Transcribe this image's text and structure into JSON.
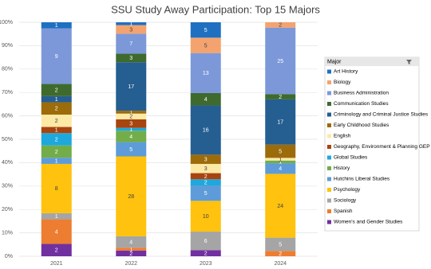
{
  "chart_data": {
    "type": "stacked_percent_bar",
    "title": "SSU Study Away Participation: Top 15 Majors",
    "categories": [
      "2021",
      "2022",
      "2023",
      "2024"
    ],
    "legend_title": "Major",
    "legend": "right",
    "ylim": [
      0,
      100
    ],
    "yticks": [
      {
        "value": 0,
        "label": "0%"
      },
      {
        "value": 10,
        "label": "10%"
      },
      {
        "value": 20,
        "label": "20%"
      },
      {
        "value": 30,
        "label": "30%"
      },
      {
        "value": 40,
        "label": "40%"
      },
      {
        "value": 50,
        "label": "50%"
      },
      {
        "value": 60,
        "label": "60%"
      },
      {
        "value": 70,
        "label": "70%"
      },
      {
        "value": 80,
        "label": "80%"
      },
      {
        "value": 90,
        "label": "90%"
      },
      {
        "value": 100,
        "label": "100%"
      }
    ],
    "series": [
      {
        "name": "Art History",
        "color": "#1f70c1",
        "values": [
          1,
          1,
          5,
          0
        ]
      },
      {
        "name": "Biology",
        "color": "#f4a36e",
        "values": [
          0,
          3,
          5,
          2
        ]
      },
      {
        "name": "Business Administration",
        "color": "#7c98d9",
        "values": [
          9,
          7,
          13,
          25
        ]
      },
      {
        "name": "Communication Studies",
        "color": "#3f6a2e",
        "values": [
          2,
          3,
          4,
          2
        ]
      },
      {
        "name": "Criminology and Criminal Justice Studies",
        "color": "#255e91",
        "values": [
          1,
          17,
          16,
          17
        ]
      },
      {
        "name": "Early Childhood Studies",
        "color": "#9c6b0a",
        "values": [
          2,
          1,
          3,
          5
        ]
      },
      {
        "name": "English",
        "color": "#fde9a6",
        "values": [
          2,
          2,
          3,
          1
        ]
      },
      {
        "name": "Geography, Environment & Planning GEP",
        "color": "#a8440f",
        "values": [
          1,
          3,
          2,
          0
        ]
      },
      {
        "name": "Global Studies",
        "color": "#1ea8dc",
        "values": [
          2,
          1,
          2,
          0
        ]
      },
      {
        "name": "History",
        "color": "#72ad4a",
        "values": [
          2,
          4,
          0,
          1
        ]
      },
      {
        "name": "Hutchins Liberal Studies",
        "color": "#5d9cd8",
        "values": [
          1,
          5,
          5,
          4
        ]
      },
      {
        "name": "Psychology",
        "color": "#ffc20e",
        "values": [
          8,
          28,
          10,
          24
        ]
      },
      {
        "name": "Sociology",
        "color": "#a5a5a5",
        "values": [
          1,
          4,
          6,
          5
        ]
      },
      {
        "name": "Spanish",
        "color": "#ed7d31",
        "values": [
          4,
          1,
          0,
          2
        ]
      },
      {
        "name": "Women's and Gender Studies",
        "color": "#7030a0",
        "values": [
          2,
          2,
          2,
          0
        ]
      }
    ]
  }
}
